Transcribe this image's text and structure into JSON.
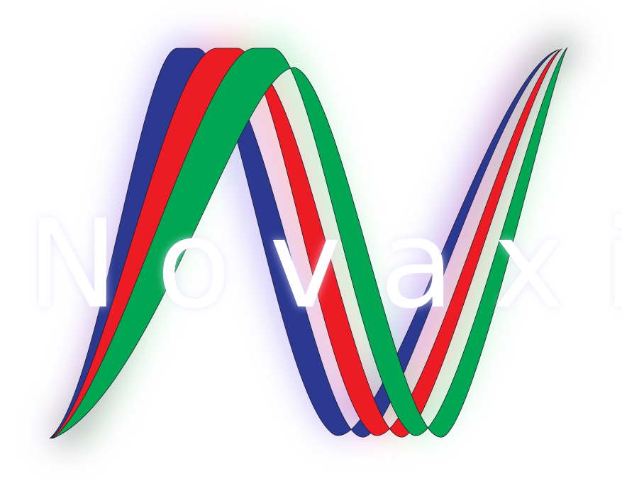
{
  "logo": {
    "wordmark": "Novaxi",
    "ribbons": [
      {
        "name": "blue-ribbon",
        "color": "#2b3990"
      },
      {
        "name": "red-ribbon",
        "color": "#ed1c24"
      },
      {
        "name": "green-ribbon",
        "color": "#00a651"
      }
    ],
    "glow_colors": [
      "#8e7cf0",
      "#f06a8a",
      "#7ce0a0"
    ],
    "background": "#ffffff"
  }
}
